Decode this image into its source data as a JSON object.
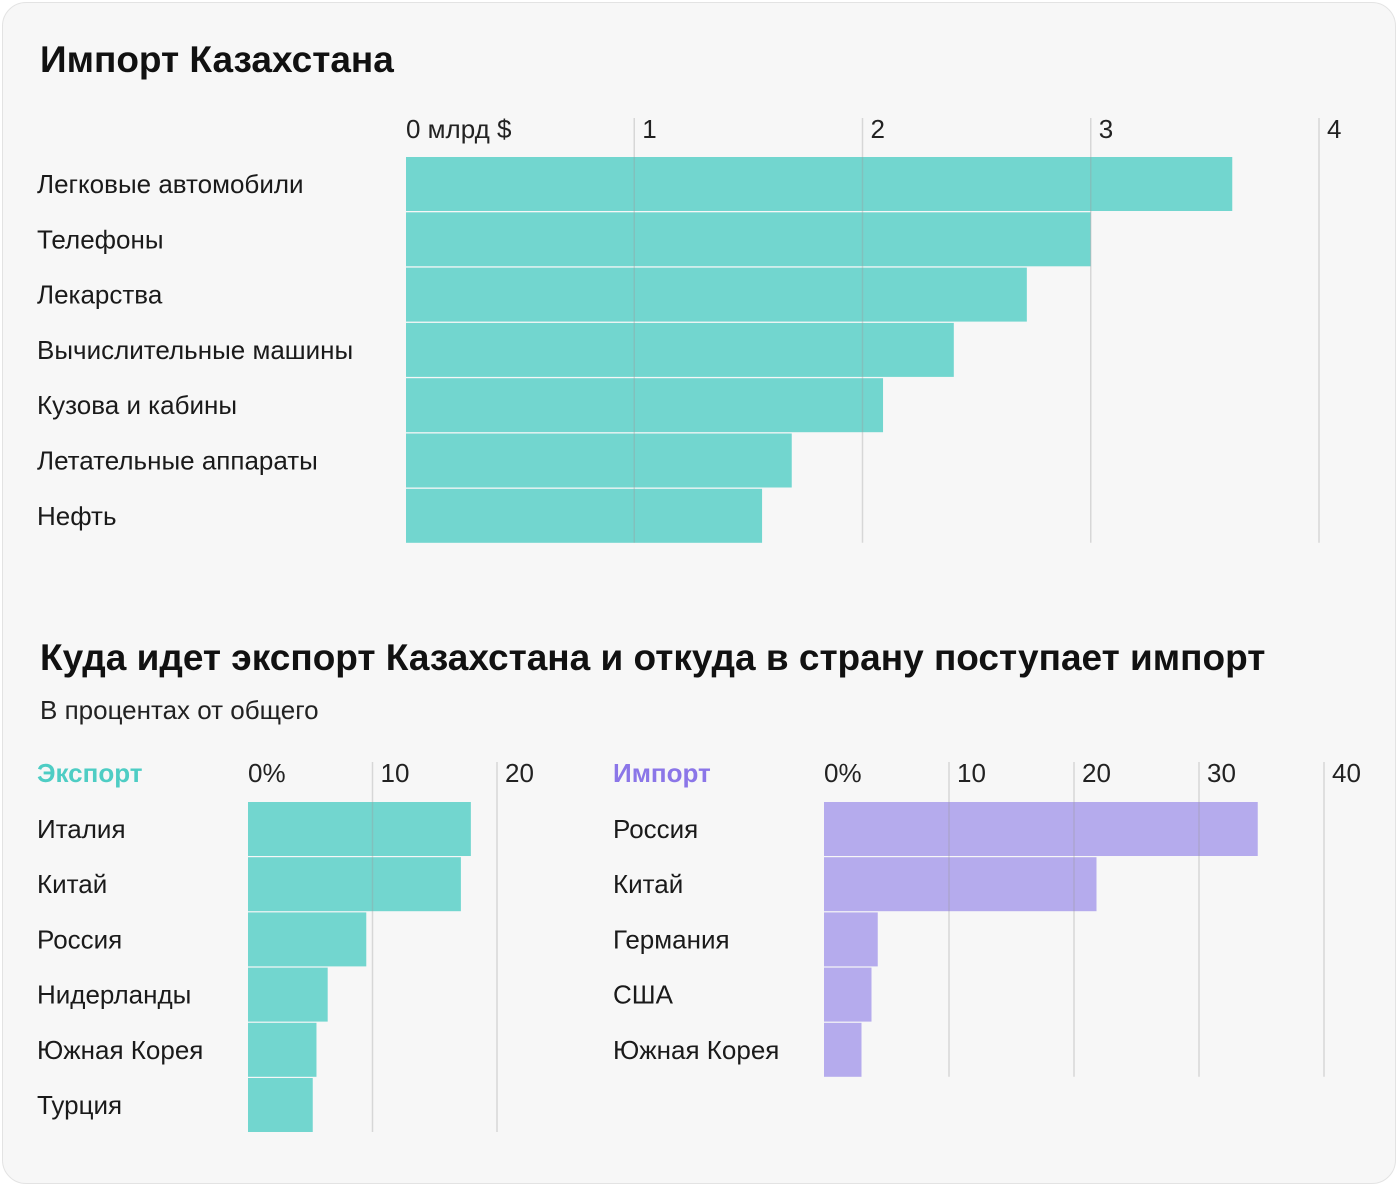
{
  "page": {
    "title1": "Импорт Казахстана",
    "title2": "Куда идет экспорт Казахстана и откуда в страну поступает импорт",
    "subtitle2": "В процентах от общего"
  },
  "colors": {
    "teal": "#72d6cf",
    "purple": "#b5abed",
    "teal_text": "#4ecdc4",
    "purple_text": "#8b76e8",
    "grid": "#d8d8d8"
  },
  "chart_data": [
    {
      "type": "bar",
      "orientation": "horizontal",
      "title": "Импорт Казахстана",
      "categories": [
        "Легковые автомобили",
        "Телефоны",
        "Лекарства",
        "Вычислительные машины",
        "Кузова и кабины",
        "Летательные аппараты",
        "Нефть"
      ],
      "values": [
        3.62,
        3.0,
        2.72,
        2.4,
        2.09,
        1.69,
        1.56
      ],
      "xlim": [
        0,
        4
      ],
      "ticks": [
        "0 млрд $",
        "1",
        "2",
        "3",
        "4"
      ],
      "color": "#72d6cf",
      "grid": true
    },
    {
      "type": "bar",
      "orientation": "horizontal",
      "title": "Экспорт",
      "categories": [
        "Италия",
        "Китай",
        "Россия",
        "Нидерланды",
        "Южная Корея",
        "Турция"
      ],
      "values": [
        17.9,
        17.1,
        9.5,
        6.4,
        5.5,
        5.2
      ],
      "xlim": [
        0,
        20
      ],
      "ticks": [
        "0%",
        "10",
        "20"
      ],
      "color": "#72d6cf",
      "grid": true
    },
    {
      "type": "bar",
      "orientation": "horizontal",
      "title": "Импорт",
      "categories": [
        "Россия",
        "Китай",
        "Германия",
        "США",
        "Южная Корея"
      ],
      "values": [
        34.7,
        21.8,
        4.3,
        3.8,
        3.0
      ],
      "xlim": [
        0,
        40
      ],
      "ticks": [
        "0%",
        "10",
        "20",
        "30",
        "40"
      ],
      "color": "#b5abed",
      "grid": true
    }
  ]
}
